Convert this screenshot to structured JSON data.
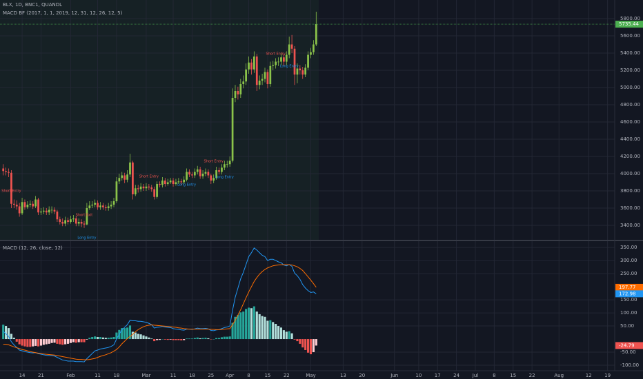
{
  "chart_data": [
    {
      "type": "candlestick",
      "title": "BLX, 1D, BNC1, QUANDL",
      "subtitle": "MACD BF (2017, 1, 1, 2019, 12, 31, 12, 26, 12, 5)",
      "x": [
        -7,
        -6,
        -5,
        -4,
        -3,
        -2,
        -1,
        0,
        1,
        2,
        3,
        4,
        5,
        6,
        7,
        8,
        9,
        10,
        11,
        12,
        13,
        14,
        15,
        16,
        17,
        18,
        19,
        20,
        21,
        22,
        23,
        24,
        25,
        26,
        27,
        28,
        29,
        30,
        31,
        32,
        33,
        34,
        35,
        36,
        37,
        38,
        39,
        40,
        41,
        42,
        43,
        44,
        45,
        46,
        47,
        48,
        49,
        50,
        51,
        52,
        53,
        54,
        55,
        56,
        57,
        58,
        59,
        60,
        61,
        62,
        63,
        64,
        65,
        66,
        67,
        68,
        69,
        70,
        71,
        72,
        73,
        74,
        75,
        76,
        77,
        78,
        79,
        80,
        81,
        82,
        83,
        84,
        85,
        86,
        87,
        88,
        89,
        90,
        91,
        92,
        93,
        94,
        95,
        96,
        97,
        98,
        99,
        100,
        101,
        102,
        103,
        104,
        105,
        106,
        107,
        108,
        109
      ],
      "open": [
        4060,
        4030,
        4020,
        4010,
        3650,
        3640,
        3620,
        3540,
        3670,
        3610,
        3640,
        3650,
        3620,
        3700,
        3550,
        3560,
        3570,
        3550,
        3580,
        3580,
        3560,
        3470,
        3440,
        3420,
        3460,
        3440,
        3470,
        3480,
        3420,
        3440,
        3420,
        3410,
        3600,
        3630,
        3640,
        3660,
        3610,
        3630,
        3610,
        3600,
        3620,
        3640,
        3680,
        3910,
        3950,
        3980,
        3930,
        3990,
        4130,
        3760,
        3830,
        3820,
        3850,
        3830,
        3850,
        3840,
        3820,
        3730,
        3880,
        3870,
        3920,
        3880,
        3900,
        3920,
        3880,
        3900,
        3910,
        3900,
        3930,
        4020,
        3990,
        3980,
        4020,
        4050,
        3970,
        4000,
        4020,
        3980,
        3920,
        3950,
        4040,
        4020,
        4070,
        4110,
        4110,
        4150,
        4880,
        4960,
        4920,
        5040,
        5070,
        5210,
        5290,
        5210,
        5360,
        5030,
        5080,
        5100,
        5180,
        5040,
        5250,
        5260,
        5300,
        5300,
        5350,
        5300,
        5380,
        5500,
        5450,
        5150,
        5220,
        5200,
        5150,
        5230,
        5380,
        5410,
        5500
      ],
      "high": [
        4110,
        4070,
        4060,
        4040,
        3700,
        3690,
        3660,
        3720,
        3700,
        3680,
        3690,
        3680,
        3740,
        3720,
        3600,
        3610,
        3600,
        3620,
        3620,
        3610,
        3580,
        3500,
        3480,
        3500,
        3490,
        3510,
        3520,
        3510,
        3480,
        3470,
        3450,
        3660,
        3680,
        3680,
        3700,
        3690,
        3670,
        3660,
        3640,
        3660,
        3680,
        3720,
        3960,
        4000,
        4020,
        4010,
        4040,
        4230,
        4150,
        3870,
        3870,
        3890,
        3880,
        3890,
        3880,
        3870,
        3850,
        3910,
        3910,
        3960,
        3950,
        3940,
        3950,
        3950,
        3940,
        3950,
        3940,
        3970,
        4060,
        4050,
        4020,
        4060,
        4090,
        4080,
        4040,
        4060,
        4050,
        4000,
        3990,
        4080,
        4070,
        4110,
        4150,
        4150,
        4200,
        4990,
        5030,
        5010,
        5100,
        5140,
        5280,
        5360,
        5330,
        5420,
        5390,
        5140,
        5160,
        5230,
        5210,
        5300,
        5310,
        5340,
        5350,
        5400,
        5390,
        5420,
        5590,
        5610,
        5480,
        5280,
        5260,
        5240,
        5270,
        5420,
        5460,
        5550,
        5880
      ],
      "low": [
        3980,
        3980,
        3960,
        3600,
        3600,
        3580,
        3500,
        3520,
        3580,
        3590,
        3610,
        3590,
        3600,
        3520,
        3520,
        3530,
        3520,
        3520,
        3540,
        3530,
        3440,
        3410,
        3390,
        3390,
        3410,
        3420,
        3440,
        3390,
        3390,
        3380,
        3370,
        3400,
        3580,
        3600,
        3610,
        3580,
        3580,
        3580,
        3570,
        3570,
        3590,
        3610,
        3660,
        3880,
        3920,
        3890,
        3900,
        3960,
        3700,
        3740,
        3780,
        3790,
        3800,
        3800,
        3810,
        3790,
        3700,
        3710,
        3840,
        3840,
        3850,
        3860,
        3880,
        3850,
        3860,
        3880,
        3870,
        3880,
        3910,
        3960,
        3950,
        3950,
        3990,
        3940,
        3940,
        3970,
        3950,
        3880,
        3890,
        3930,
        3990,
        3990,
        4040,
        4070,
        4080,
        4130,
        4830,
        4860,
        4880,
        4990,
        5030,
        5160,
        5150,
        5170,
        4960,
        4980,
        5030,
        5060,
        4990,
        5010,
        5200,
        5220,
        5250,
        5260,
        5250,
        5260,
        5340,
        5400,
        5030,
        5050,
        5150,
        5100,
        5120,
        5200,
        5340,
        5380,
        5480
      ],
      "close": [
        4030,
        4020,
        4010,
        3650,
        3640,
        3620,
        3540,
        3670,
        3610,
        3640,
        3650,
        3620,
        3700,
        3550,
        3560,
        3570,
        3550,
        3580,
        3580,
        3560,
        3470,
        3440,
        3420,
        3460,
        3440,
        3470,
        3480,
        3420,
        3440,
        3420,
        3410,
        3600,
        3630,
        3640,
        3660,
        3610,
        3630,
        3610,
        3600,
        3620,
        3640,
        3680,
        3910,
        3950,
        3980,
        3930,
        3990,
        4130,
        3760,
        3830,
        3820,
        3850,
        3830,
        3850,
        3840,
        3820,
        3730,
        3880,
        3870,
        3920,
        3880,
        3900,
        3920,
        3880,
        3900,
        3910,
        3900,
        3930,
        4020,
        3990,
        3980,
        4020,
        4050,
        3970,
        4000,
        4020,
        3980,
        3920,
        3950,
        4040,
        4020,
        4070,
        4110,
        4110,
        4150,
        4880,
        4960,
        4920,
        5040,
        5070,
        5210,
        5290,
        5210,
        5360,
        5030,
        5080,
        5100,
        5180,
        5040,
        5250,
        5260,
        5300,
        5300,
        5350,
        5300,
        5380,
        5500,
        5450,
        5150,
        5220,
        5200,
        5150,
        5230,
        5380,
        5410,
        5500,
        5735.44
      ],
      "up_color": "#8bc34a",
      "down_color": "#ef5350",
      "last_price_color": "#4caf50",
      "xlim": [
        -8.2,
        219.4
      ],
      "xticks": [
        {
          "value": 0,
          "label": "14"
        },
        {
          "value": 7,
          "label": "21"
        },
        {
          "value": 18,
          "label": "Feb"
        },
        {
          "value": 28,
          "label": "11"
        },
        {
          "value": 35,
          "label": "18"
        },
        {
          "value": 46,
          "label": "Mar"
        },
        {
          "value": 56,
          "label": "11"
        },
        {
          "value": 63,
          "label": "18"
        },
        {
          "value": 70,
          "label": "25"
        },
        {
          "value": 77,
          "label": "Apr"
        },
        {
          "value": 84,
          "label": "8"
        },
        {
          "value": 91,
          "label": "15"
        },
        {
          "value": 98,
          "label": "22"
        },
        {
          "value": 107,
          "label": "May"
        },
        {
          "value": 119,
          "label": "13"
        },
        {
          "value": 126,
          "label": "20"
        },
        {
          "value": 138,
          "label": "Jun"
        },
        {
          "value": 147,
          "label": "10"
        },
        {
          "value": 154,
          "label": "17"
        },
        {
          "value": 161,
          "label": "24"
        },
        {
          "value": 168,
          "label": "Jul"
        },
        {
          "value": 175,
          "label": "8"
        },
        {
          "value": 182,
          "label": "15"
        },
        {
          "value": 189,
          "label": "22"
        },
        {
          "value": 199,
          "label": "Aug"
        },
        {
          "value": 210,
          "label": "12"
        },
        {
          "value": 217,
          "label": "19"
        }
      ],
      "ylim": [
        3232,
        6016
      ],
      "yticks": [
        {
          "value": 3400,
          "label": "3400.00"
        },
        {
          "value": 3600,
          "label": "3600.00"
        },
        {
          "value": 3800,
          "label": "3800.00"
        },
        {
          "value": 4000,
          "label": "4000.00"
        },
        {
          "value": 4200,
          "label": "4200.00"
        },
        {
          "value": 4400,
          "label": "4400.00"
        },
        {
          "value": 4600,
          "label": "4600.00"
        },
        {
          "value": 4800,
          "label": "4800.00"
        },
        {
          "value": 5000,
          "label": "5000.00"
        },
        {
          "value": 5200,
          "label": "5200.00"
        },
        {
          "value": 5400,
          "label": "5400.00"
        },
        {
          "value": 5600,
          "label": "5600.00"
        },
        {
          "value": 5800,
          "label": "5800.00"
        }
      ],
      "grid": true,
      "annotations": [
        {
          "text": "Short Entry",
          "x": -4,
          "y": 3800,
          "color": "#ef5350"
        },
        {
          "text": "Short Exit",
          "x": 23,
          "y": 3520,
          "color": "#ef5350"
        },
        {
          "text": "Long Entry",
          "x": 24,
          "y": 3256,
          "color": "#2196f3"
        },
        {
          "text": "Short Entry",
          "x": 47,
          "y": 3968,
          "color": "#ef5350"
        },
        {
          "text": "Long Entry",
          "x": 61,
          "y": 3872,
          "color": "#2196f3"
        },
        {
          "text": "Short Entry",
          "x": 71,
          "y": 4144,
          "color": "#ef5350"
        },
        {
          "text": "Long Entry",
          "x": 75,
          "y": 3960,
          "color": "#2196f3"
        },
        {
          "text": "Short Entry",
          "x": 94,
          "y": 5392,
          "color": "#ef5350"
        },
        {
          "text": "Long Entry",
          "x": 99,
          "y": 5248,
          "color": "#2196f3"
        }
      ]
    },
    {
      "type": "macd",
      "title": "MACD (12, 26, close, 12)",
      "series": [
        {
          "color": "#2196f3",
          "values": [
            30,
            20,
            10,
            -10,
            -22,
            -32,
            -42,
            -45,
            -48,
            -50,
            -52,
            -53,
            -52,
            -56,
            -58,
            -60,
            -62,
            -63,
            -63,
            -65,
            -70,
            -75,
            -80,
            -82,
            -84,
            -84,
            -84,
            -86,
            -86,
            -86,
            -87,
            -75,
            -65,
            -55,
            -45,
            -42,
            -38,
            -36,
            -34,
            -32,
            -28,
            -22,
            0,
            18,
            35,
            45,
            55,
            72,
            70,
            70,
            68,
            68,
            66,
            64,
            60,
            55,
            42,
            45,
            46,
            48,
            46,
            45,
            44,
            40,
            38,
            37,
            35,
            34,
            38,
            38,
            37,
            39,
            42,
            40,
            40,
            41,
            39,
            33,
            32,
            35,
            36,
            40,
            44,
            46,
            50,
            110,
            160,
            195,
            230,
            255,
            285,
            315,
            330,
            348,
            340,
            330,
            320,
            315,
            300,
            305,
            305,
            300,
            295,
            292,
            283,
            280,
            285,
            278,
            252,
            242,
            228,
            208,
            195,
            185,
            178,
            180,
            172.98
          ]
        },
        {
          "color": "#ff6d00",
          "values": [
            -20,
            -20,
            -22,
            -26,
            -30,
            -33,
            -36,
            -40,
            -42,
            -45,
            -48,
            -50,
            -52,
            -54,
            -55,
            -57,
            -58,
            -59,
            -60,
            -61,
            -63,
            -65,
            -67,
            -69,
            -71,
            -73,
            -75,
            -77,
            -78,
            -78,
            -79,
            -79,
            -78,
            -76,
            -74,
            -70,
            -66,
            -63,
            -60,
            -56,
            -52,
            -46,
            -40,
            -30,
            -18,
            -8,
            2,
            10,
            18,
            28,
            36,
            42,
            47,
            51,
            53,
            54,
            53,
            52,
            51,
            50,
            49,
            48,
            47,
            46,
            45,
            43,
            42,
            40,
            39,
            38,
            38,
            38,
            38,
            38,
            38,
            38,
            38,
            37,
            37,
            36,
            36,
            37,
            38,
            39,
            40,
            55,
            72,
            92,
            112,
            135,
            158,
            180,
            200,
            220,
            235,
            248,
            258,
            266,
            272,
            276,
            280,
            282,
            283,
            284,
            284,
            284,
            284,
            283,
            280,
            276,
            270,
            262,
            250,
            238,
            225,
            212,
            197.77
          ]
        }
      ],
      "histogram_values": [
        55,
        50,
        42,
        20,
        5,
        -10,
        -20,
        -25,
        -28,
        -30,
        -30,
        -28,
        -26,
        -28,
        -25,
        -22,
        -20,
        -18,
        -15,
        -14,
        -18,
        -20,
        -22,
        -20,
        -18,
        -15,
        -12,
        -14,
        -12,
        -12,
        -12,
        -2,
        5,
        8,
        10,
        8,
        8,
        6,
        5,
        5,
        6,
        8,
        25,
        35,
        42,
        42,
        44,
        52,
        28,
        25,
        20,
        18,
        14,
        10,
        6,
        2,
        -8,
        -4,
        -3,
        0,
        -2,
        -3,
        -2,
        -4,
        -4,
        -4,
        -5,
        -4,
        2,
        2,
        2,
        4,
        6,
        3,
        4,
        5,
        3,
        -1,
        0,
        4,
        4,
        7,
        9,
        9,
        10,
        62,
        85,
        92,
        102,
        105,
        115,
        120,
        118,
        125,
        105,
        95,
        88,
        85,
        70,
        72,
        65,
        58,
        50,
        44,
        34,
        28,
        30,
        22,
        -2,
        -8,
        -18,
        -32,
        -42,
        -52,
        -58,
        -50,
        -24.79
      ],
      "histogram_colors": [
        "#26a69a",
        "#b2dfdb",
        "#ffcdd2",
        "#ef5350"
      ],
      "ylim": [
        -121,
        374
      ],
      "yticks": [
        {
          "value": -100,
          "label": "-100.00"
        },
        {
          "value": -50,
          "label": "-50.00"
        },
        {
          "value": 50,
          "label": "50.00"
        },
        {
          "value": 100,
          "label": "100.00"
        },
        {
          "value": 150,
          "label": "150.00"
        },
        {
          "value": 250,
          "label": "250.00"
        },
        {
          "value": 300,
          "label": "300.00"
        },
        {
          "value": 350,
          "label": "350.00"
        }
      ],
      "grid": true
    }
  ]
}
